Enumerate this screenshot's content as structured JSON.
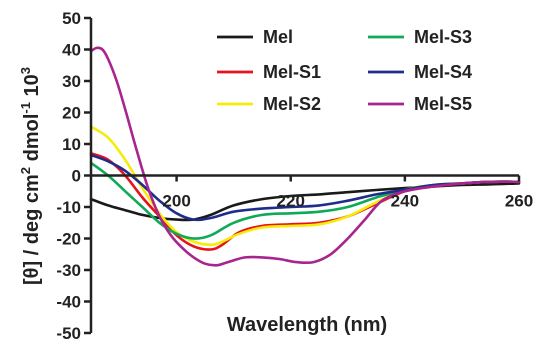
{
  "chart_data": {
    "type": "line",
    "title": "",
    "xlabel": "Wavelength (nm)",
    "ylabel_main": "[θ] / deg cm",
    "ylabel_sup1": "2",
    "ylabel_mid": " dmol",
    "ylabel_sup2": "-1",
    "ylabel_end": " 10",
    "ylabel_sup3": "3",
    "xlim": [
      185,
      260
    ],
    "ylim": [
      -50,
      50
    ],
    "x_ticks": [
      {
        "value": 200,
        "label": "200"
      },
      {
        "value": 220,
        "label": "220"
      },
      {
        "value": 240,
        "label": "240"
      },
      {
        "value": 260,
        "label": "260"
      }
    ],
    "y_ticks": [
      {
        "value": 50,
        "label": "50"
      },
      {
        "value": 40,
        "label": "40"
      },
      {
        "value": 30,
        "label": "30"
      },
      {
        "value": 20,
        "label": "20"
      },
      {
        "value": 10,
        "label": "10"
      },
      {
        "value": 0,
        "label": "0"
      },
      {
        "value": -10,
        "label": "-10"
      },
      {
        "value": -20,
        "label": "-20"
      },
      {
        "value": -30,
        "label": "-30"
      },
      {
        "value": -40,
        "label": "-40"
      },
      {
        "value": -50,
        "label": "-50"
      }
    ],
    "grid": false,
    "legend_placement": "top-right, two columns",
    "series": [
      {
        "name": "Mel",
        "color": "#1a1a1a",
        "x": [
          185,
          188,
          191,
          194,
          197,
          200,
          203,
          206,
          210,
          215,
          220,
          225,
          230,
          235,
          240,
          245,
          250,
          255,
          260
        ],
        "y": [
          -7.5,
          -9.5,
          -11,
          -12.5,
          -13.5,
          -14,
          -14,
          -12.5,
          -9.5,
          -7.5,
          -6.5,
          -6,
          -5.3,
          -4.6,
          -4,
          -3.5,
          -3,
          -2.8,
          -2.5
        ]
      },
      {
        "name": "Mel-S1",
        "color": "#e8121b",
        "x": [
          185,
          188,
          191,
          194,
          197,
          200,
          203,
          206,
          208,
          211,
          215,
          220,
          225,
          230,
          235,
          240,
          245,
          250,
          255,
          260
        ],
        "y": [
          7,
          5,
          0,
          -7,
          -13,
          -19,
          -22.5,
          -23.5,
          -22,
          -18,
          -16,
          -15.5,
          -15,
          -13,
          -9,
          -5,
          -3.5,
          -2.5,
          -2,
          -2
        ]
      },
      {
        "name": "Mel-S2",
        "color": "#f5ec0a",
        "x": [
          185,
          188,
          191,
          194,
          197,
          200,
          203,
          206,
          208,
          211,
          215,
          220,
          225,
          230,
          235,
          240,
          245,
          250,
          255,
          260
        ],
        "y": [
          15.5,
          12,
          5,
          -4,
          -12,
          -18,
          -21,
          -22,
          -21,
          -18.5,
          -16.5,
          -16,
          -15.5,
          -13,
          -8.5,
          -4.5,
          -3,
          -2.5,
          -2,
          -2
        ]
      },
      {
        "name": "Mel-S3",
        "color": "#10a957",
        "x": [
          185,
          188,
          191,
          194,
          197,
          200,
          203,
          206,
          210,
          215,
          220,
          225,
          230,
          235,
          240,
          245,
          250,
          255,
          260
        ],
        "y": [
          4,
          0,
          -5,
          -10,
          -15,
          -18.5,
          -20,
          -19,
          -15,
          -12.5,
          -12,
          -11.5,
          -10,
          -7,
          -4.5,
          -3,
          -2.5,
          -2,
          -2
        ]
      },
      {
        "name": "Mel-S4",
        "color": "#1e2c8c",
        "x": [
          185,
          188,
          191,
          194,
          197,
          200,
          203,
          206,
          210,
          215,
          220,
          225,
          230,
          235,
          240,
          245,
          250,
          255,
          260
        ],
        "y": [
          6.5,
          4.5,
          1.5,
          -3,
          -8,
          -12,
          -14,
          -13.5,
          -11.5,
          -10.5,
          -10,
          -9.5,
          -8,
          -6,
          -4.5,
          -3,
          -2.5,
          -2,
          -2
        ]
      },
      {
        "name": "Mel-S5",
        "color": "#a8248f",
        "x": [
          185,
          186,
          187,
          188,
          189.5,
          191,
          193,
          195,
          197,
          199,
          201,
          203,
          205,
          207,
          209,
          212,
          215,
          218,
          221,
          224,
          227,
          230,
          233,
          236,
          240,
          245,
          250,
          255,
          260
        ],
        "y": [
          39.5,
          40.5,
          40,
          37,
          30,
          21,
          8,
          -4,
          -13,
          -19,
          -23,
          -26,
          -28,
          -28.5,
          -27.5,
          -26,
          -26,
          -26.5,
          -27.5,
          -27.5,
          -25,
          -20,
          -14,
          -8,
          -5,
          -3.5,
          -2.5,
          -2,
          -2
        ]
      }
    ]
  }
}
